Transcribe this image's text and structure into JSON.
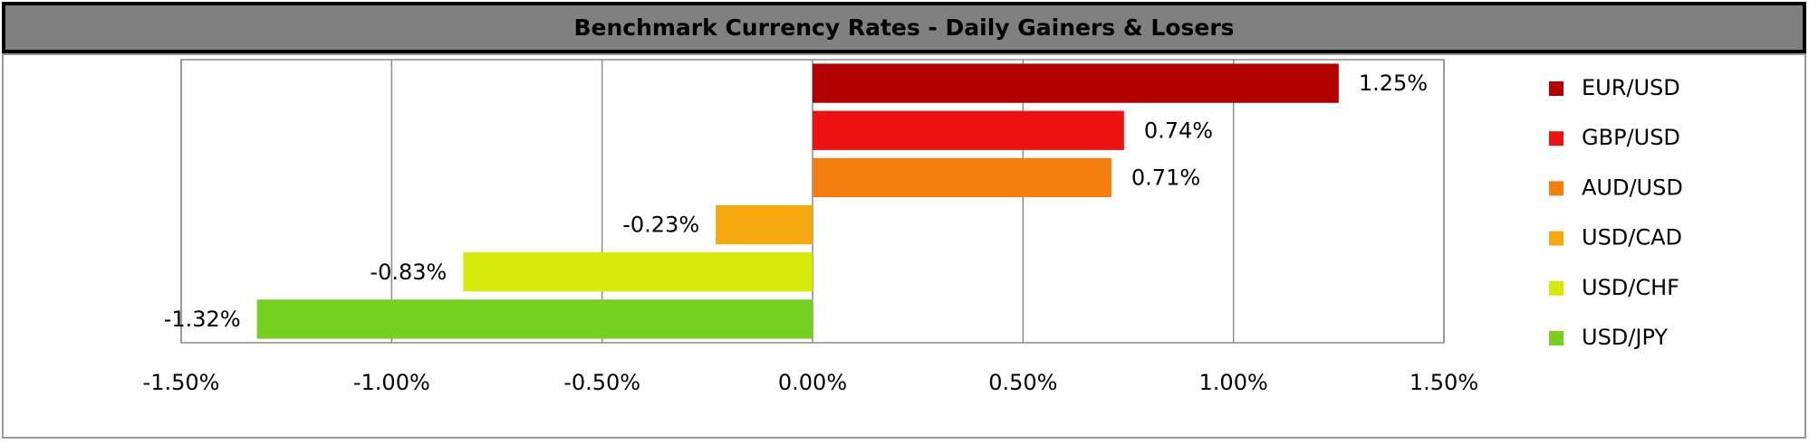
{
  "chart_data": {
    "type": "bar",
    "orientation": "horizontal",
    "title": "Benchmark Currency Rates - Daily Gainers & Losers",
    "categories": [
      "EUR/USD",
      "GBP/USD",
      "AUD/USD",
      "USD/CAD",
      "USD/CHF",
      "USD/JPY"
    ],
    "values": [
      1.25,
      0.74,
      0.71,
      -0.23,
      -0.83,
      -1.32
    ],
    "value_labels": [
      "1.25%",
      "0.74%",
      "0.71%",
      "-0.23%",
      "-0.83%",
      "-1.32%"
    ],
    "colors": [
      "#b30000",
      "#ee1111",
      "#f57f0e",
      "#f6a90f",
      "#d6ea0a",
      "#76d01f"
    ],
    "xlim": [
      -1.5,
      1.5
    ],
    "xticks": [
      {
        "value": -1.5,
        "label": "-1.50%"
      },
      {
        "value": -1.0,
        "label": "-1.00%"
      },
      {
        "value": -0.5,
        "label": "-0.50%"
      },
      {
        "value": 0,
        "label": "0.00%"
      },
      {
        "value": 0.5,
        "label": "0.50%"
      },
      {
        "value": 1.0,
        "label": "1.00%"
      },
      {
        "value": 1.5,
        "label": "1.50%"
      }
    ],
    "grid": true,
    "legend": "right"
  }
}
